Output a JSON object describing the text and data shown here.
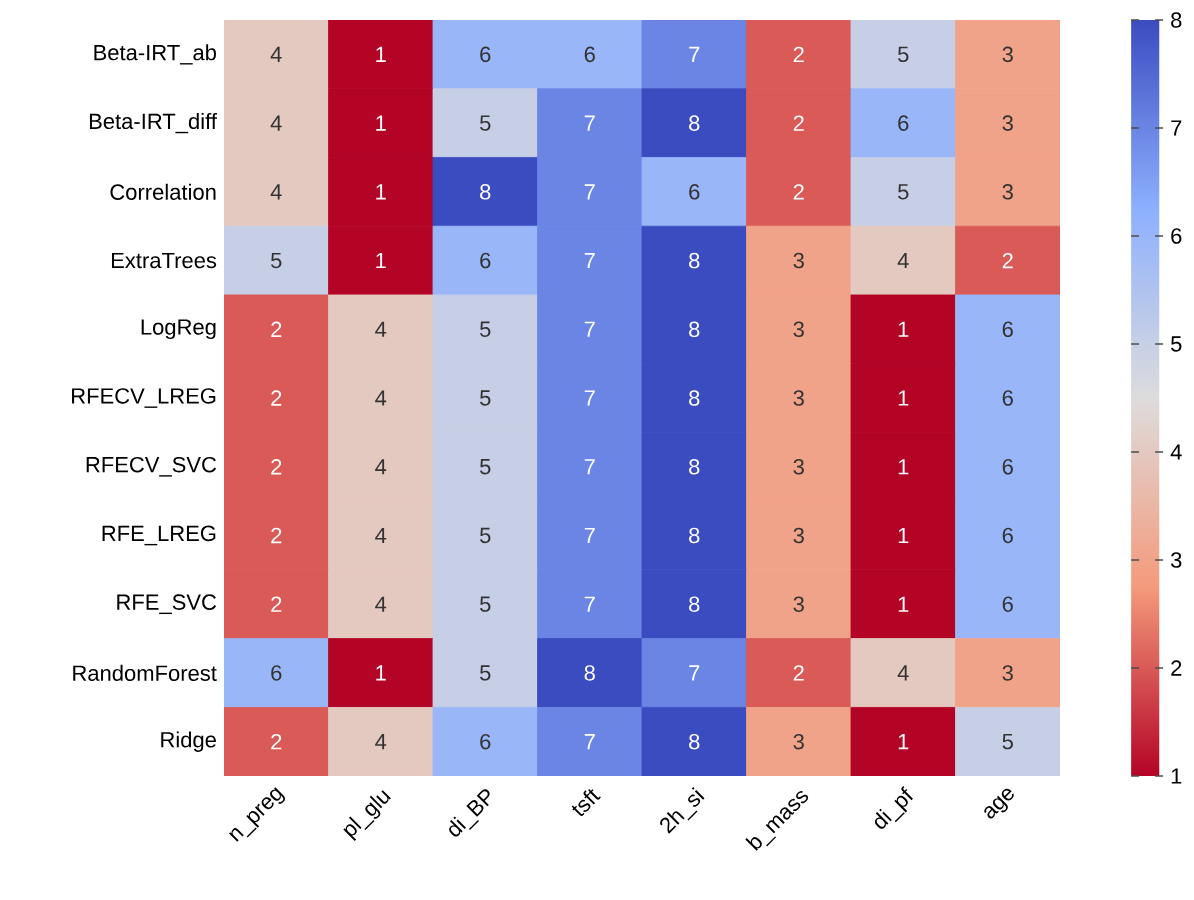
{
  "chart_data": {
    "type": "heatmap",
    "categories": [
      "n_preg",
      "pl_glu",
      "di_BP",
      "tsft",
      "2h_si",
      "b_mass",
      "di_pf",
      "age"
    ],
    "y_categories": [
      "Beta-IRT_ab",
      "Beta-IRT_diff",
      "Correlation",
      "ExtraTrees",
      "LogReg",
      "RFECV_LREG",
      "RFECV_SVC",
      "RFE_LREG",
      "RFE_SVC",
      "RandomForest",
      "Ridge"
    ],
    "cells": [
      [
        4,
        1,
        6,
        6,
        7,
        2,
        5,
        3
      ],
      [
        4,
        1,
        5,
        7,
        8,
        2,
        6,
        3
      ],
      [
        4,
        1,
        8,
        7,
        6,
        2,
        5,
        3
      ],
      [
        5,
        1,
        6,
        7,
        8,
        3,
        4,
        2
      ],
      [
        2,
        4,
        5,
        7,
        8,
        3,
        1,
        6
      ],
      [
        2,
        4,
        5,
        7,
        8,
        3,
        1,
        6
      ],
      [
        2,
        4,
        5,
        7,
        8,
        3,
        1,
        6
      ],
      [
        2,
        4,
        5,
        7,
        8,
        3,
        1,
        6
      ],
      [
        2,
        4,
        5,
        7,
        8,
        3,
        1,
        6
      ],
      [
        6,
        1,
        5,
        8,
        7,
        2,
        4,
        3
      ],
      [
        2,
        4,
        6,
        7,
        8,
        3,
        1,
        5
      ]
    ],
    "data_labels": true,
    "clim": [
      1,
      8
    ],
    "cticks": [
      1,
      2,
      3,
      4,
      5,
      6,
      7,
      8
    ]
  }
}
